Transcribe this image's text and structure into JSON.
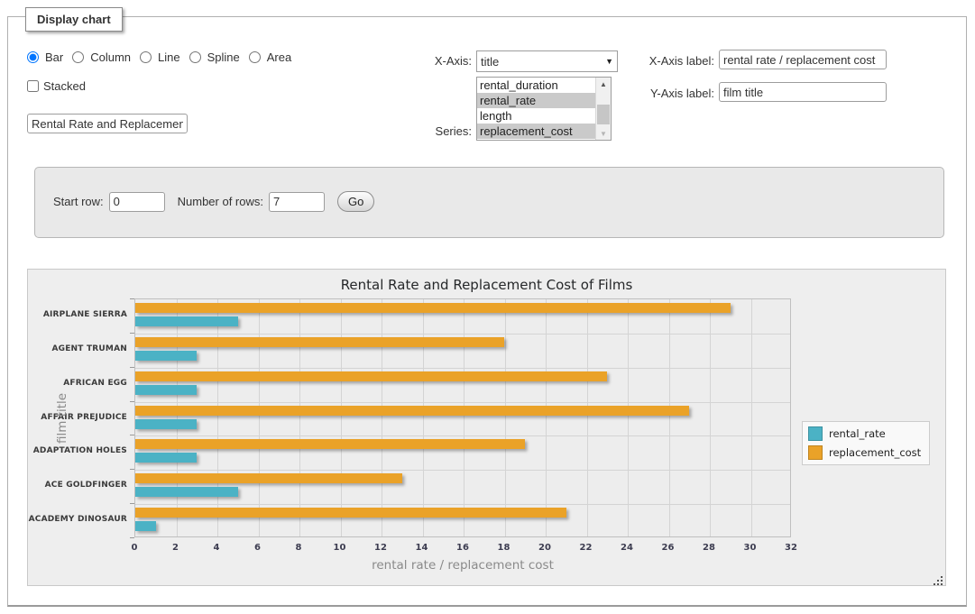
{
  "panel": {
    "tab_title": "Display chart"
  },
  "controls": {
    "chart_type": {
      "options": [
        "Bar",
        "Column",
        "Line",
        "Spline",
        "Area"
      ],
      "selected": "Bar"
    },
    "stacked": {
      "label": "Stacked",
      "checked": false
    },
    "chart_title_input": {
      "value": "Rental Rate and Replacement Cost of Films"
    },
    "x_axis": {
      "label": "X-Axis:",
      "selected": "title"
    },
    "series_select": {
      "label": "Series:",
      "options": [
        {
          "name": "rental_duration",
          "selected": false
        },
        {
          "name": "rental_rate",
          "selected": true
        },
        {
          "name": "length",
          "selected": false
        },
        {
          "name": "replacement_cost",
          "selected": true
        }
      ]
    },
    "x_axis_label": {
      "label": "X-Axis label:",
      "value": "rental rate / replacement cost"
    },
    "y_axis_label": {
      "label": "Y-Axis label:",
      "value": "film title"
    },
    "rows": {
      "start_row_label": "Start row:",
      "start_row_value": "0",
      "num_rows_label": "Number of rows:",
      "num_rows_value": "7",
      "go_label": "Go"
    }
  },
  "chart_data": {
    "type": "bar",
    "orientation": "horizontal",
    "title": "Rental Rate and Replacement Cost of Films",
    "xlabel": "rental rate / replacement cost",
    "ylabel": "film title",
    "categories": [
      "AIRPLANE SIERRA",
      "AGENT TRUMAN",
      "AFRICAN EGG",
      "AFFAIR PREJUDICE",
      "ADAPTATION HOLES",
      "ACE GOLDFINGER",
      "ACADEMY DINOSAUR"
    ],
    "series": [
      {
        "name": "rental_rate",
        "color": "#4bb2c5",
        "values": [
          4.99,
          2.99,
          2.99,
          2.99,
          2.99,
          4.99,
          0.99
        ]
      },
      {
        "name": "replacement_cost",
        "color": "#eaa228",
        "values": [
          28.99,
          17.99,
          22.99,
          26.99,
          18.99,
          12.99,
          20.99
        ]
      }
    ],
    "xlim": [
      0,
      32
    ],
    "x_tick_step": 2,
    "grid": true,
    "legend_position": "right"
  }
}
